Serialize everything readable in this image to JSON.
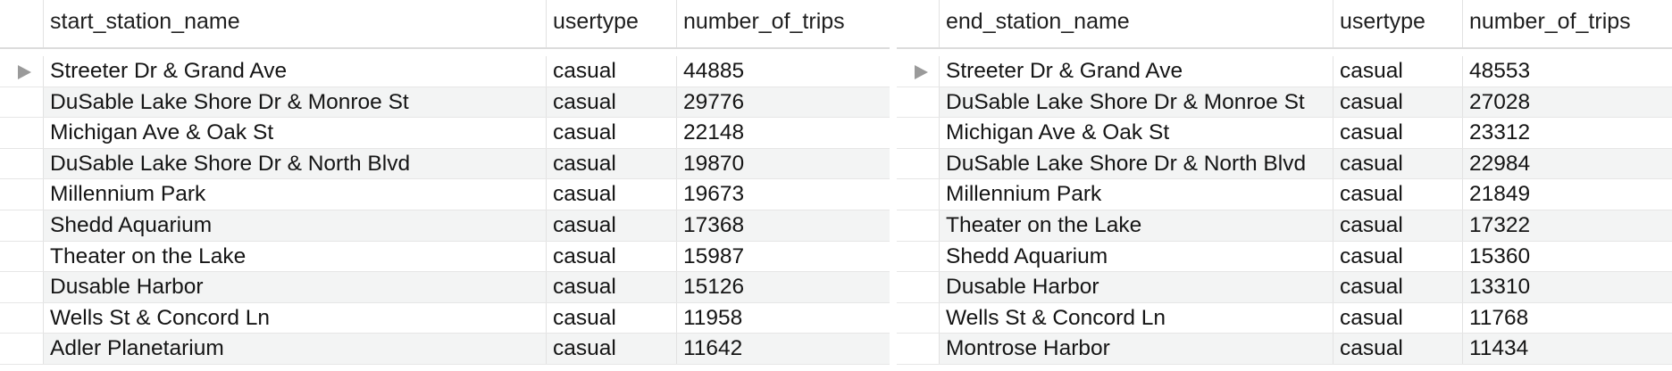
{
  "tables": [
    {
      "columns": [
        "start_station_name",
        "usertype",
        "number_of_trips"
      ],
      "selected_row_indicator": "row-pointer-icon",
      "rows": [
        {
          "station": "Streeter Dr & Grand Ave",
          "usertype": "casual",
          "trips": "44885",
          "selected": true
        },
        {
          "station": "DuSable Lake Shore Dr & Monroe St",
          "usertype": "casual",
          "trips": "29776",
          "selected": false
        },
        {
          "station": "Michigan Ave & Oak St",
          "usertype": "casual",
          "trips": "22148",
          "selected": false
        },
        {
          "station": "DuSable Lake Shore Dr & North Blvd",
          "usertype": "casual",
          "trips": "19870",
          "selected": false
        },
        {
          "station": "Millennium Park",
          "usertype": "casual",
          "trips": "19673",
          "selected": false
        },
        {
          "station": "Shedd Aquarium",
          "usertype": "casual",
          "trips": "17368",
          "selected": false
        },
        {
          "station": "Theater on the Lake",
          "usertype": "casual",
          "trips": "15987",
          "selected": false
        },
        {
          "station": "Dusable Harbor",
          "usertype": "casual",
          "trips": "15126",
          "selected": false
        },
        {
          "station": "Wells St & Concord Ln",
          "usertype": "casual",
          "trips": "11958",
          "selected": false
        },
        {
          "station": "Adler Planetarium",
          "usertype": "casual",
          "trips": "11642",
          "selected": false
        }
      ]
    },
    {
      "columns": [
        "end_station_name",
        "usertype",
        "number_of_trips"
      ],
      "selected_row_indicator": "row-pointer-icon",
      "rows": [
        {
          "station": "Streeter Dr & Grand Ave",
          "usertype": "casual",
          "trips": "48553",
          "selected": true
        },
        {
          "station": "DuSable Lake Shore Dr & Monroe St",
          "usertype": "casual",
          "trips": "27028",
          "selected": false
        },
        {
          "station": "Michigan Ave & Oak St",
          "usertype": "casual",
          "trips": "23312",
          "selected": false
        },
        {
          "station": "DuSable Lake Shore Dr & North Blvd",
          "usertype": "casual",
          "trips": "22984",
          "selected": false
        },
        {
          "station": "Millennium Park",
          "usertype": "casual",
          "trips": "21849",
          "selected": false
        },
        {
          "station": "Theater on the Lake",
          "usertype": "casual",
          "trips": "17322",
          "selected": false
        },
        {
          "station": "Shedd Aquarium",
          "usertype": "casual",
          "trips": "15360",
          "selected": false
        },
        {
          "station": "Dusable Harbor",
          "usertype": "casual",
          "trips": "13310",
          "selected": false
        },
        {
          "station": "Wells St & Concord Ln",
          "usertype": "casual",
          "trips": "11768",
          "selected": false
        },
        {
          "station": "Montrose Harbor",
          "usertype": "casual",
          "trips": "11434",
          "selected": false
        }
      ]
    }
  ],
  "colors": {
    "row_alt_background": "#f3f4f4",
    "grid_line": "#e2e2e2",
    "marker": "#9a9a9a"
  }
}
